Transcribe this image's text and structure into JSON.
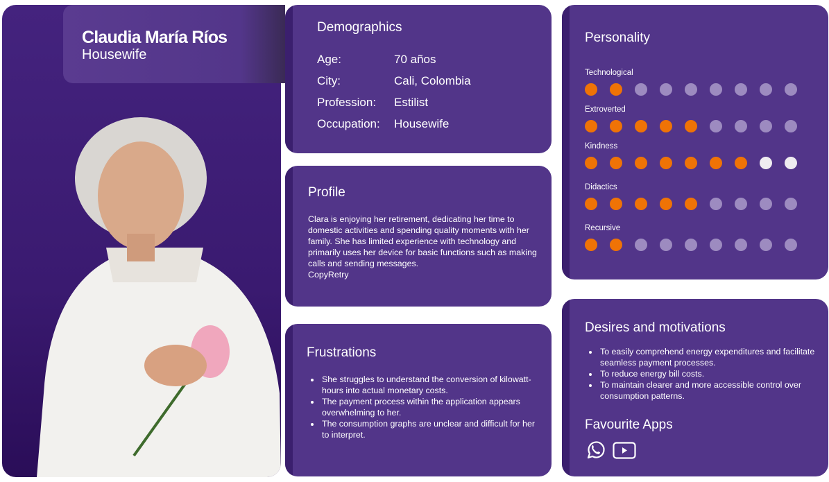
{
  "persona": {
    "name": "Claudia María Ríos",
    "role": "Housewife"
  },
  "demographics": {
    "title": "Demographics",
    "rows": [
      {
        "label": "Age:",
        "value": "70 años"
      },
      {
        "label": "City:",
        "value": "Cali, Colombia"
      },
      {
        "label": "Profession:",
        "value": "Estilist"
      },
      {
        "label": "Occupation:",
        "value": "Housewife"
      }
    ]
  },
  "profile": {
    "title": "Profile",
    "text": "Clara is enjoying her retirement, dedicating her time to domestic activities and spending quality moments with her family. She has limited experience with technology and primarily uses her device for basic functions such as making calls and sending messages.",
    "extra": "CopyRetry"
  },
  "frustrations": {
    "title": "Frustrations",
    "items": [
      "She struggles to understand the conversion of kilowatt-hours into actual monetary costs.",
      "The payment process within the application appears overwhelming to her.",
      "The consumption graphs are unclear and difficult for her to interpret."
    ]
  },
  "personality": {
    "title": "Personality",
    "max": 9,
    "filled_color": "#ef7306",
    "traits": [
      {
        "label": "Technological",
        "value": 2,
        "empty_color": "#9d8bc0"
      },
      {
        "label": "Extroverted",
        "value": 5,
        "empty_color": "#9d8bc0"
      },
      {
        "label": "Kindness",
        "value": 7,
        "empty_color": "#eeecf0"
      },
      {
        "label": "Didactics",
        "value": 5,
        "empty_color": "#9d8bc0"
      },
      {
        "label": "Recursive",
        "value": 2,
        "empty_color": "#9d8bc0"
      }
    ]
  },
  "desires": {
    "title": "Desires and motivations",
    "items": [
      "To easily comprehend energy expenditures and facilitate seamless payment processes.",
      "To reduce energy bill costs.",
      "To maintain clearer and more accessible control over consumption patterns."
    ]
  },
  "apps": {
    "title": "Favourite Apps",
    "icons": [
      "whatsapp-icon",
      "youtube-icon"
    ]
  }
}
